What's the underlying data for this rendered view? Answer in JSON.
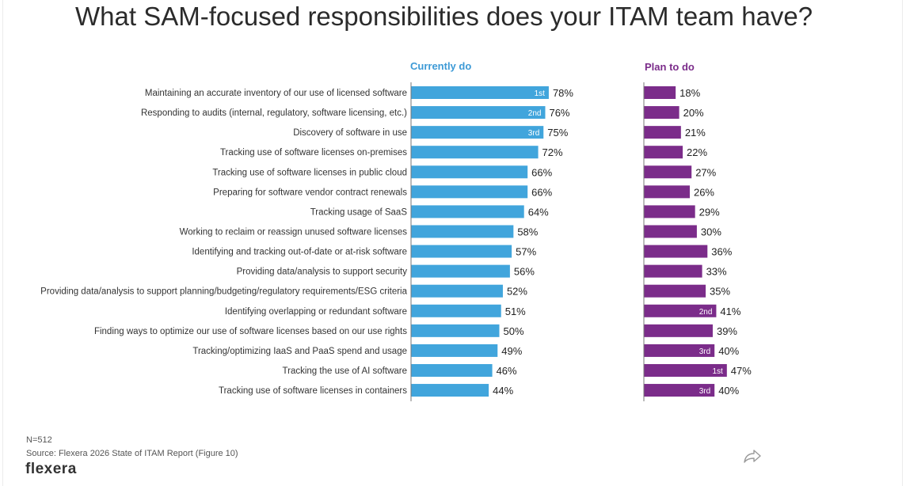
{
  "title": "What SAM-focused responsibilities does your ITAM team have?",
  "footer": {
    "n": "N=512",
    "source": "Source: Flexera 2026 State of ITAM Report (Figure 10)",
    "brand": "flexera"
  },
  "icons": {
    "share": "share-arrow-icon"
  },
  "colors": {
    "current": "#41a5dc",
    "plan": "#7b2c8a",
    "current_label": "#3d9ad6",
    "plan_label": "#7b2c8a"
  },
  "chart_data": {
    "type": "bar",
    "orientation": "horizontal",
    "title": "What SAM-focused responsibilities does your ITAM team have?",
    "categories": [
      "Maintaining an accurate inventory of our use of licensed software",
      "Responding to audits (internal, regulatory, software licensing, etc.)",
      "Discovery of software in use",
      "Tracking use of software licenses on-premises",
      "Tracking use of software licenses in public cloud",
      "Preparing for software vendor contract renewals",
      "Tracking usage of SaaS",
      "Working to reclaim or reassign unused software licenses",
      "Identifying and tracking out-of-date or at-risk software",
      "Providing data/analysis to support security",
      "Providing data/analysis to support planning/budgeting/regulatory requirements/ESG criteria",
      "Identifying overlapping or redundant software",
      "Finding ways to optimize our use of software licenses based on our use rights",
      "Tracking/optimizing IaaS and PaaS spend and usage",
      "Tracking the use of AI software",
      "Tracking use of software licenses in containers"
    ],
    "series": [
      {
        "name": "Currently do",
        "values": [
          78,
          76,
          75,
          72,
          66,
          66,
          64,
          58,
          57,
          56,
          52,
          51,
          50,
          49,
          46,
          44
        ],
        "value_labels": [
          "78%",
          "76%",
          "75%",
          "72%",
          "66%",
          "66%",
          "64%",
          "58%",
          "57%",
          "56%",
          "52%",
          "51%",
          "50%",
          "49%",
          "46%",
          "44%"
        ],
        "ranks": [
          "1st",
          "2nd",
          "3rd",
          "",
          "",
          "",
          "",
          "",
          "",
          "",
          "",
          "",
          "",
          "",
          "",
          ""
        ]
      },
      {
        "name": "Plan to do",
        "values": [
          18,
          20,
          21,
          22,
          27,
          26,
          29,
          30,
          36,
          33,
          35,
          41,
          39,
          40,
          47,
          40
        ],
        "value_labels": [
          "18%",
          "20%",
          "21%",
          "22%",
          "27%",
          "26%",
          "29%",
          "30%",
          "36%",
          "33%",
          "35%",
          "41%",
          "39%",
          "40%",
          "47%",
          "40%"
        ],
        "ranks": [
          "",
          "",
          "",
          "",
          "",
          "",
          "",
          "",
          "",
          "",
          "",
          "2nd",
          "",
          "3rd",
          "1st",
          "3rd"
        ]
      }
    ],
    "value_unit": "%",
    "legend": "column headers above each panel",
    "grid": false
  }
}
